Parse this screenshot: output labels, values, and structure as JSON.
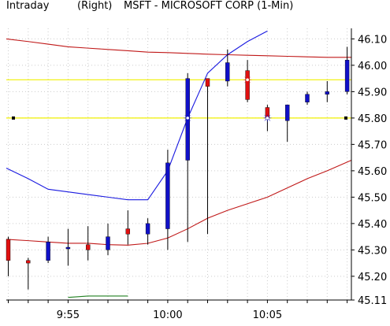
{
  "header": {
    "interval": "Intraday",
    "side": "(Right)",
    "symbol": "MSFT - MICROSOFT CORP (1-Min)"
  },
  "colors": {
    "up_body": "#1010c8",
    "down_body": "#e01010",
    "wick": "#000000",
    "bollinger": "#c01818",
    "fast_ma": "#1a1ae0",
    "hline": "#f0f000",
    "green_line": "#208020",
    "grid": "#cccccc",
    "frame": "#000000"
  },
  "chart_data": {
    "type": "candlestick",
    "title": "MSFT - MICROSOFT CORP (1-Min)",
    "y_axis_side": "right",
    "ylim": [
      45.11,
      46.14
    ],
    "y_ticks": [
      "46.10",
      "46.00",
      "45.90",
      "45.80",
      "45.70",
      "45.60",
      "45.50",
      "45.40",
      "45.30",
      "45.20",
      "45.11"
    ],
    "x_ticks": [
      {
        "label": "9:55",
        "index": 3
      },
      {
        "label": "10:00",
        "index": 8
      },
      {
        "label": "10:05",
        "index": 13
      }
    ],
    "horizontal_lines": [
      45.945,
      45.8
    ],
    "candles": [
      {
        "open": 45.34,
        "high": 45.35,
        "low": 45.2,
        "close": 45.26
      },
      {
        "open": 45.26,
        "high": 45.27,
        "low": 45.15,
        "close": 45.25
      },
      {
        "open": 45.26,
        "high": 45.35,
        "low": 45.25,
        "close": 45.33
      },
      {
        "open": 45.31,
        "high": 45.38,
        "low": 45.24,
        "close": 45.31
      },
      {
        "open": 45.32,
        "high": 45.39,
        "low": 45.26,
        "close": 45.3
      },
      {
        "open": 45.3,
        "high": 45.4,
        "low": 45.28,
        "close": 45.35
      },
      {
        "open": 45.38,
        "high": 45.45,
        "low": 45.32,
        "close": 45.36
      },
      {
        "open": 45.36,
        "high": 45.42,
        "low": 45.32,
        "close": 45.4
      },
      {
        "open": 45.38,
        "high": 45.68,
        "low": 45.3,
        "close": 45.63
      },
      {
        "open": 45.64,
        "high": 45.97,
        "low": 45.33,
        "close": 45.95
      },
      {
        "open": 45.95,
        "high": 45.95,
        "low": 45.36,
        "close": 45.92
      },
      {
        "open": 45.94,
        "high": 46.06,
        "low": 45.92,
        "close": 46.01
      },
      {
        "open": 45.98,
        "high": 46.02,
        "low": 45.86,
        "close": 45.87
      },
      {
        "open": 45.84,
        "high": 45.85,
        "low": 45.75,
        "close": 45.8
      },
      {
        "open": 45.79,
        "high": 45.85,
        "low": 45.71,
        "close": 45.85
      },
      {
        "open": 45.86,
        "high": 45.9,
        "low": 45.85,
        "close": 45.89
      },
      {
        "open": 45.89,
        "high": 45.94,
        "low": 45.86,
        "close": 45.9
      },
      {
        "open": 45.9,
        "high": 46.07,
        "low": 45.89,
        "close": 46.02
      }
    ],
    "indicators": {
      "upper_band": [
        46.1,
        46.09,
        46.08,
        46.07,
        46.065,
        46.06,
        46.055,
        46.05,
        46.048,
        46.045,
        46.042,
        46.04,
        46.038,
        46.036,
        46.034,
        46.032,
        46.03,
        46.03
      ],
      "fast_ma": [
        45.61,
        45.57,
        45.53,
        45.52,
        45.51,
        45.5,
        45.49,
        45.49,
        45.6,
        45.8,
        45.97,
        46.04,
        46.09,
        46.13
      ],
      "lower_band": [
        45.34,
        45.335,
        45.33,
        45.325,
        45.325,
        45.32,
        45.318,
        45.325,
        45.345,
        45.38,
        45.42,
        45.45,
        45.475,
        45.5,
        45.535,
        45.57,
        45.6,
        45.64
      ],
      "green_line": [
        null,
        null,
        null,
        45.12,
        45.125,
        45.125,
        45.125
      ]
    },
    "markers": [
      {
        "index": 9,
        "value": 45.8,
        "color": "#1010c8"
      },
      {
        "index": 12,
        "value": 45.945,
        "color": "#e01010"
      },
      {
        "index": 13,
        "value": 45.8,
        "color": "#1010c8"
      }
    ]
  }
}
